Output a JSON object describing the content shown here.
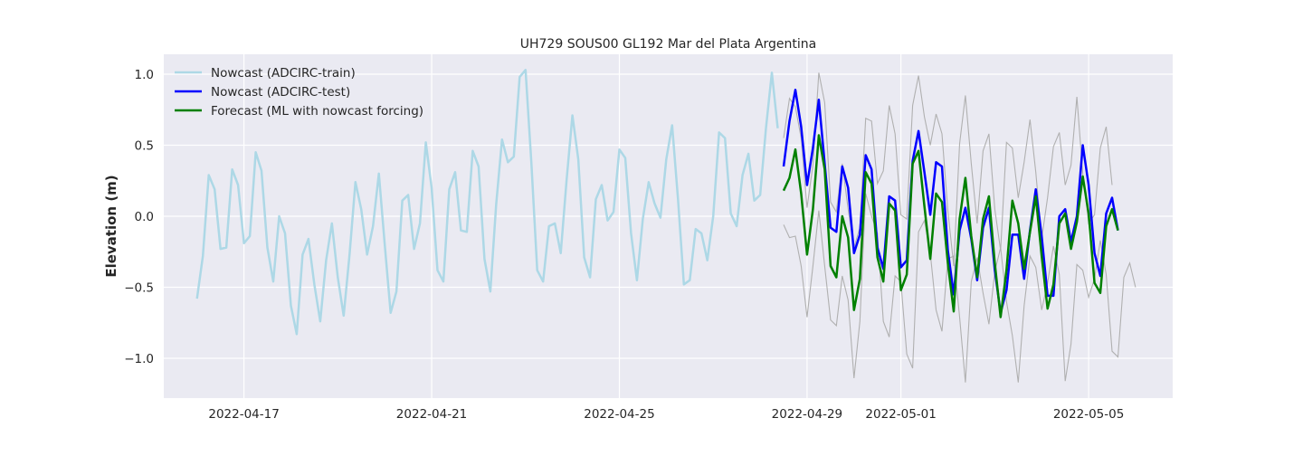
{
  "chart_data": {
    "type": "line",
    "title": "UH729 SOUS00 GL192 Mar del Plata Argentina",
    "xlabel": "",
    "ylabel": "Elevation (m)",
    "x_range": [
      "2022-04-15T07:00",
      "2022-05-06T19:00"
    ],
    "ylim": [
      -1.28,
      1.14
    ],
    "x_ticks": [
      "2022-04-17",
      "2022-04-21",
      "2022-04-25",
      "2022-04-29",
      "2022-05-01",
      "2022-05-05"
    ],
    "y_ticks": [
      {
        "value": 1.0,
        "label": "1.0"
      },
      {
        "value": 0.5,
        "label": "0.5"
      },
      {
        "value": 0.0,
        "label": "0.0"
      },
      {
        "value": -0.5,
        "label": "−0.5"
      },
      {
        "value": -1.0,
        "label": "−1.0"
      }
    ],
    "grid": true,
    "legend_position": "top-left",
    "style": {
      "plot_background": "#eaeaf2",
      "grid_color": "#ffffff",
      "band_color": "#b0b0b0"
    },
    "series": [
      {
        "name": "Nowcast (ADCIRC-train)",
        "color": "#add8e6",
        "start": "2022-04-16T00:00",
        "step_hours": 3,
        "values": [
          -0.58,
          -0.28,
          0.29,
          0.19,
          -0.23,
          -0.22,
          0.33,
          0.22,
          -0.19,
          -0.14,
          0.45,
          0.32,
          -0.22,
          -0.46,
          0.0,
          -0.12,
          -0.63,
          -0.83,
          -0.27,
          -0.16,
          -0.48,
          -0.74,
          -0.31,
          -0.05,
          -0.43,
          -0.7,
          -0.27,
          0.24,
          0.05,
          -0.27,
          -0.07,
          0.3,
          -0.2,
          -0.68,
          -0.53,
          0.11,
          0.15,
          -0.23,
          -0.05,
          0.52,
          0.2,
          -0.38,
          -0.46,
          0.19,
          0.31,
          -0.1,
          -0.11,
          0.46,
          0.35,
          -0.3,
          -0.53,
          0.08,
          0.54,
          0.38,
          0.42,
          0.98,
          1.03,
          0.38,
          -0.38,
          -0.46,
          -0.07,
          -0.05,
          -0.26,
          0.25,
          0.71,
          0.4,
          -0.29,
          -0.43,
          0.12,
          0.22,
          -0.03,
          0.03,
          0.47,
          0.41,
          -0.12,
          -0.45,
          -0.02,
          0.24,
          0.09,
          -0.01,
          0.4,
          0.64,
          0.12,
          -0.48,
          -0.45,
          -0.09,
          -0.12,
          -0.31,
          0.0,
          0.59,
          0.55,
          0.02,
          -0.07,
          0.29,
          0.44,
          0.11,
          0.15,
          0.62,
          1.01,
          0.62
        ]
      },
      {
        "name": "Nowcast (ADCIRC-test)",
        "color": "#0000ff",
        "start": "2022-04-28T12:00",
        "step_hours": 3,
        "values": [
          0.35,
          0.67,
          0.89,
          0.63,
          0.22,
          0.48,
          0.82,
          0.37,
          -0.08,
          -0.11,
          0.35,
          0.2,
          -0.26,
          -0.13,
          0.43,
          0.33,
          -0.22,
          -0.37,
          0.14,
          0.11,
          -0.36,
          -0.31,
          0.39,
          0.6,
          0.31,
          0.01,
          0.38,
          0.35,
          -0.24,
          -0.55,
          -0.1,
          0.06,
          -0.16,
          -0.45,
          -0.08,
          0.06,
          -0.38,
          -0.68,
          -0.52,
          -0.13,
          -0.13,
          -0.44,
          -0.1,
          0.19,
          -0.14,
          -0.56,
          -0.56,
          0.0,
          0.05,
          -0.18,
          0.0,
          0.5,
          0.22,
          -0.26,
          -0.42,
          0.02,
          0.13,
          -0.1
        ]
      },
      {
        "name": "Forecast (ML with nowcast forcing)",
        "color": "#008000",
        "start": "2022-04-28T12:00",
        "step_hours": 3,
        "values": [
          0.18,
          0.27,
          0.47,
          0.16,
          -0.27,
          0.05,
          0.57,
          0.33,
          -0.35,
          -0.43,
          0.0,
          -0.15,
          -0.66,
          -0.44,
          0.31,
          0.23,
          -0.29,
          -0.46,
          0.09,
          0.04,
          -0.52,
          -0.41,
          0.37,
          0.46,
          0.07,
          -0.3,
          0.16,
          0.1,
          -0.33,
          -0.67,
          -0.02,
          0.27,
          -0.14,
          -0.43,
          -0.02,
          0.14,
          -0.33,
          -0.71,
          -0.38,
          0.11,
          -0.05,
          -0.37,
          -0.11,
          0.14,
          -0.28,
          -0.65,
          -0.48,
          -0.05,
          0.02,
          -0.23,
          -0.04,
          0.28,
          0.02,
          -0.47,
          -0.54,
          -0.07,
          0.05,
          -0.1
        ]
      }
    ],
    "bands": [
      {
        "start": "2022-04-28T12:00",
        "step_hours": 3,
        "values": [
          -0.06,
          -0.15,
          -0.14,
          -0.35,
          -0.71,
          -0.35,
          0.04,
          -0.35,
          -0.73,
          -0.77,
          -0.42,
          -0.59,
          -1.14,
          -0.74,
          0.16,
          0.0,
          -0.12,
          -0.74,
          -0.85,
          -0.42,
          -0.46,
          -0.97,
          -1.07,
          -0.11,
          -0.03,
          -0.26,
          -0.66,
          -0.81,
          -0.3,
          -0.28,
          -0.71,
          -1.17,
          -0.46,
          -0.29,
          -0.54,
          -0.76,
          -0.39,
          -0.22,
          -0.6,
          -0.84,
          -1.17,
          -0.63,
          -0.28,
          -0.36,
          -0.66,
          -0.47,
          -0.21,
          -0.41,
          -1.16,
          -0.9,
          -0.34,
          -0.38,
          -0.57,
          -0.44,
          -0.17,
          -0.41,
          -0.95,
          -0.99,
          -0.43,
          -0.33,
          -0.5
        ]
      },
      {
        "start": "2022-04-28T12:00",
        "step_hours": 3,
        "values": [
          0.55,
          0.83,
          0.77,
          0.55,
          0.06,
          0.36,
          1.01,
          0.8,
          0.1,
          0.03,
          0.37,
          0.05,
          -0.22,
          -0.08,
          0.69,
          0.67,
          0.23,
          0.32,
          0.78,
          0.58,
          0.01,
          -0.02,
          0.78,
          0.99,
          0.7,
          0.5,
          0.72,
          0.58,
          0.04,
          -0.35,
          0.51,
          0.85,
          0.37,
          -0.05,
          0.46,
          0.58,
          0.05,
          -0.24,
          0.52,
          0.48,
          0.13,
          0.38,
          0.68,
          0.31,
          -0.16,
          0.13,
          0.49,
          0.59,
          0.22,
          0.36,
          0.84,
          0.3,
          -0.05,
          0.01,
          0.48,
          0.63,
          0.22
        ]
      }
    ]
  }
}
